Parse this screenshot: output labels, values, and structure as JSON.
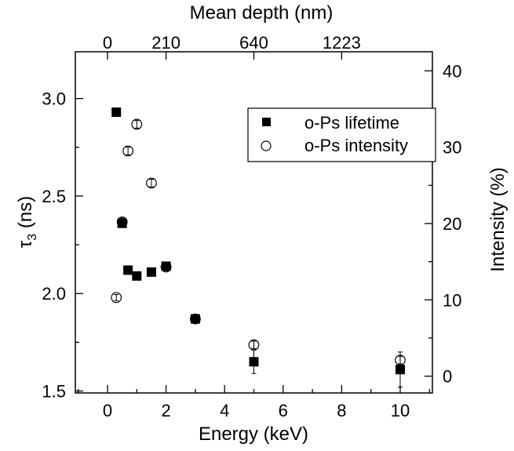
{
  "chart_data": {
    "type": "scatter",
    "xlabel": "Energy (keV)",
    "x_top_label": "Mean depth (nm)",
    "ylabel_left_main": "τ",
    "ylabel_left_sub": "3",
    "ylabel_left_unit": " (ns)",
    "ylabel_right": "Intensity  (%)",
    "xlim": [
      -1.1,
      11.1
    ],
    "ylim_left": [
      1.49,
      3.24
    ],
    "ylim_right": [
      -2.2,
      42.5
    ],
    "x_ticks": [
      0,
      2,
      4,
      6,
      8,
      10
    ],
    "x_tick_labels": [
      "0",
      "2",
      "4",
      "6",
      "8",
      "10"
    ],
    "y_left_ticks": [
      1.5,
      2.0,
      2.5,
      3.0
    ],
    "y_left_tick_labels": [
      "1.5",
      "2.0",
      "2.5",
      "3.0"
    ],
    "y_right_ticks": [
      0,
      10,
      20,
      30,
      40
    ],
    "y_right_tick_labels": [
      "0",
      "10",
      "20",
      "30",
      "40"
    ],
    "x_top_ticks": [
      0,
      2,
      5,
      8
    ],
    "x_top_tick_labels": [
      "0",
      "210",
      "640",
      "1223"
    ],
    "legend_position": "top-right",
    "series": [
      {
        "name": "o-Ps lifetime",
        "axis": "left",
        "marker": "filled-square",
        "x": [
          0.3,
          0.5,
          0.7,
          1.0,
          1.5,
          2.0,
          3.0,
          5.0,
          10.0
        ],
        "y": [
          2.93,
          2.36,
          2.12,
          2.09,
          2.11,
          2.14,
          1.87,
          1.65,
          1.61
        ],
        "yerr": [
          0.02,
          0.02,
          0.02,
          0.02,
          0.02,
          0.02,
          0.02,
          0.06,
          0.09
        ]
      },
      {
        "name": "o-Ps intensity",
        "axis": "right",
        "marker": "open-circle",
        "x": [
          0.3,
          0.5,
          0.7,
          1.0,
          1.5,
          2.0,
          3.0,
          5.0,
          10.0
        ],
        "y": [
          10.3,
          20.2,
          29.5,
          33.0,
          25.3,
          14.3,
          7.5,
          4.1,
          2.1
        ],
        "yerr": [
          0.4,
          0.5,
          0.5,
          0.5,
          0.5,
          0.5,
          0.5,
          0.5,
          0.5
        ]
      }
    ]
  }
}
